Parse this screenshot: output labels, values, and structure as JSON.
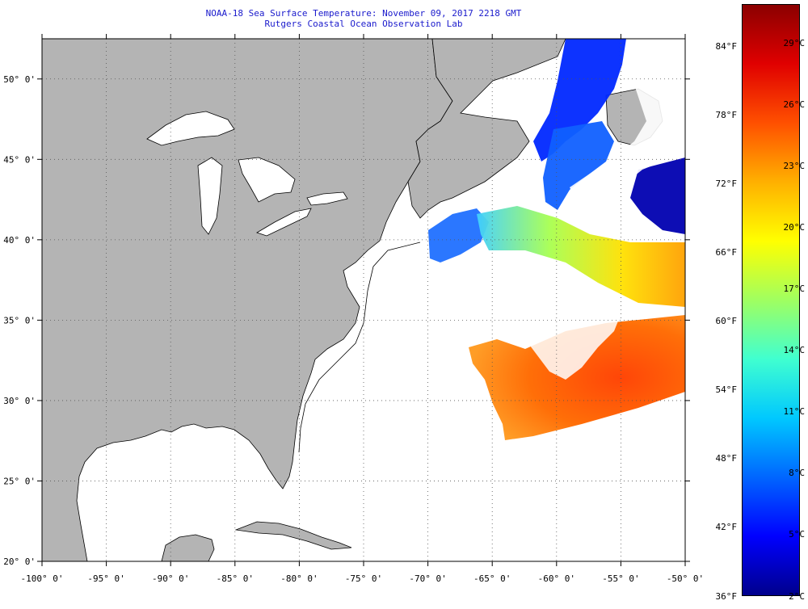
{
  "title": {
    "line1": "NOAA-18 Sea Surface Temperature:  November 09, 2017 2218 GMT",
    "line2": "Rutgers Coastal Ocean Observation Lab"
  },
  "map": {
    "lon_range": [
      -100,
      -50
    ],
    "lat_range": [
      20,
      52.5
    ],
    "lon_ticks": [
      -100,
      -95,
      -90,
      -85,
      -80,
      -75,
      -70,
      -65,
      -60,
      -55,
      -50
    ],
    "lat_ticks": [
      20,
      25,
      30,
      35,
      40,
      45,
      50
    ],
    "lon_labels": [
      "-100° 0'",
      "-95° 0'",
      "-90° 0'",
      "-85° 0'",
      "-80° 0'",
      "-75° 0'",
      "-70° 0'",
      "-65° 0'",
      "-60° 0'",
      "-55° 0'",
      "-50° 0'"
    ],
    "lat_labels": [
      "20° 0'",
      "25° 0'",
      "30° 0'",
      "35° 0'",
      "40° 0'",
      "45° 0'",
      "50° 0'"
    ],
    "land_color": "#b4b4b4",
    "ocean_color": "#ffffff",
    "grid": "dotted"
  },
  "colorbar": {
    "colors": [
      "#00008c",
      "#0000ff",
      "#0066ff",
      "#00c8ff",
      "#40ffd0",
      "#a0ff60",
      "#ffff00",
      "#ffb000",
      "#ff5000",
      "#e00000",
      "#8b0000"
    ],
    "fahrenheit_labels": [
      "84°F",
      "78°F",
      "72°F",
      "66°F",
      "60°F",
      "54°F",
      "48°F",
      "42°F",
      "36°F"
    ],
    "celsius_labels": [
      "29°C",
      "26°C",
      "23°C",
      "20°C",
      "17°C",
      "14°C",
      "11°C",
      "8°C",
      "5°C",
      "2°C"
    ]
  }
}
